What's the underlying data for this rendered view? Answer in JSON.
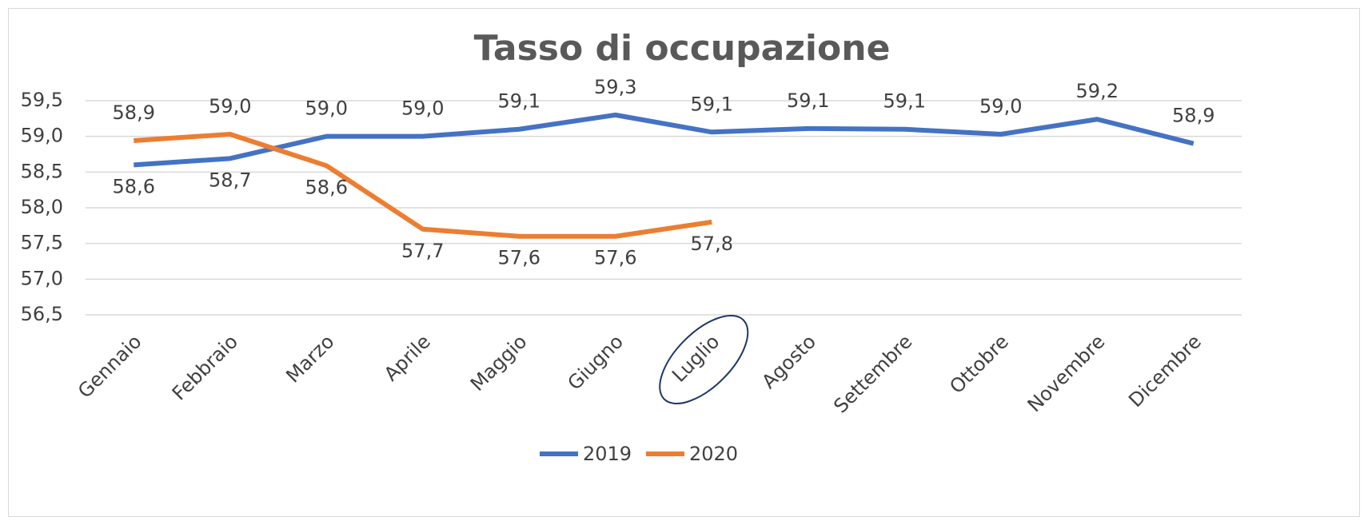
{
  "chart_data": {
    "type": "line",
    "title": "Tasso di occupazione",
    "categories": [
      "Gennaio",
      "Febbraio",
      "Marzo",
      "Aprile",
      "Maggio",
      "Giugno",
      "Luglio",
      "Agosto",
      "Settembre",
      "Ottobre",
      "Novembre",
      "Dicembre"
    ],
    "series": [
      {
        "name": "2019",
        "color": "#4472c4",
        "values": [
          58.6,
          58.69,
          59.0,
          59.0,
          59.1,
          59.3,
          59.06,
          59.11,
          59.1,
          59.03,
          59.24,
          58.9
        ],
        "value_labels": [
          "58,6",
          "58,7",
          "59,0",
          "59,0",
          "59,1",
          "59,3",
          "59,1",
          "59,1",
          "59,1",
          "59,0",
          "59,2",
          "58,9"
        ]
      },
      {
        "name": "2020",
        "color": "#ed7d31",
        "values": [
          58.94,
          59.03,
          58.59,
          57.7,
          57.6,
          57.6,
          57.8,
          null,
          null,
          null,
          null,
          null
        ],
        "value_labels": [
          "58,9",
          "59,0",
          "58,6",
          "57,7",
          "57,6",
          "57,6",
          "57,8",
          null,
          null,
          null,
          null,
          null
        ]
      }
    ],
    "ylim": [
      56.5,
      59.5
    ],
    "yticks": [
      {
        "value": 56.5,
        "label": "56,5"
      },
      {
        "value": 57,
        "label": "57,0"
      },
      {
        "value": 57.5,
        "label": "57,5"
      },
      {
        "value": 58,
        "label": "58,0"
      },
      {
        "value": 58.5,
        "label": "58,5"
      },
      {
        "value": 59,
        "label": "59,0"
      },
      {
        "value": 59.5,
        "label": "59,5"
      }
    ],
    "grid": true,
    "legend": "bottom"
  }
}
